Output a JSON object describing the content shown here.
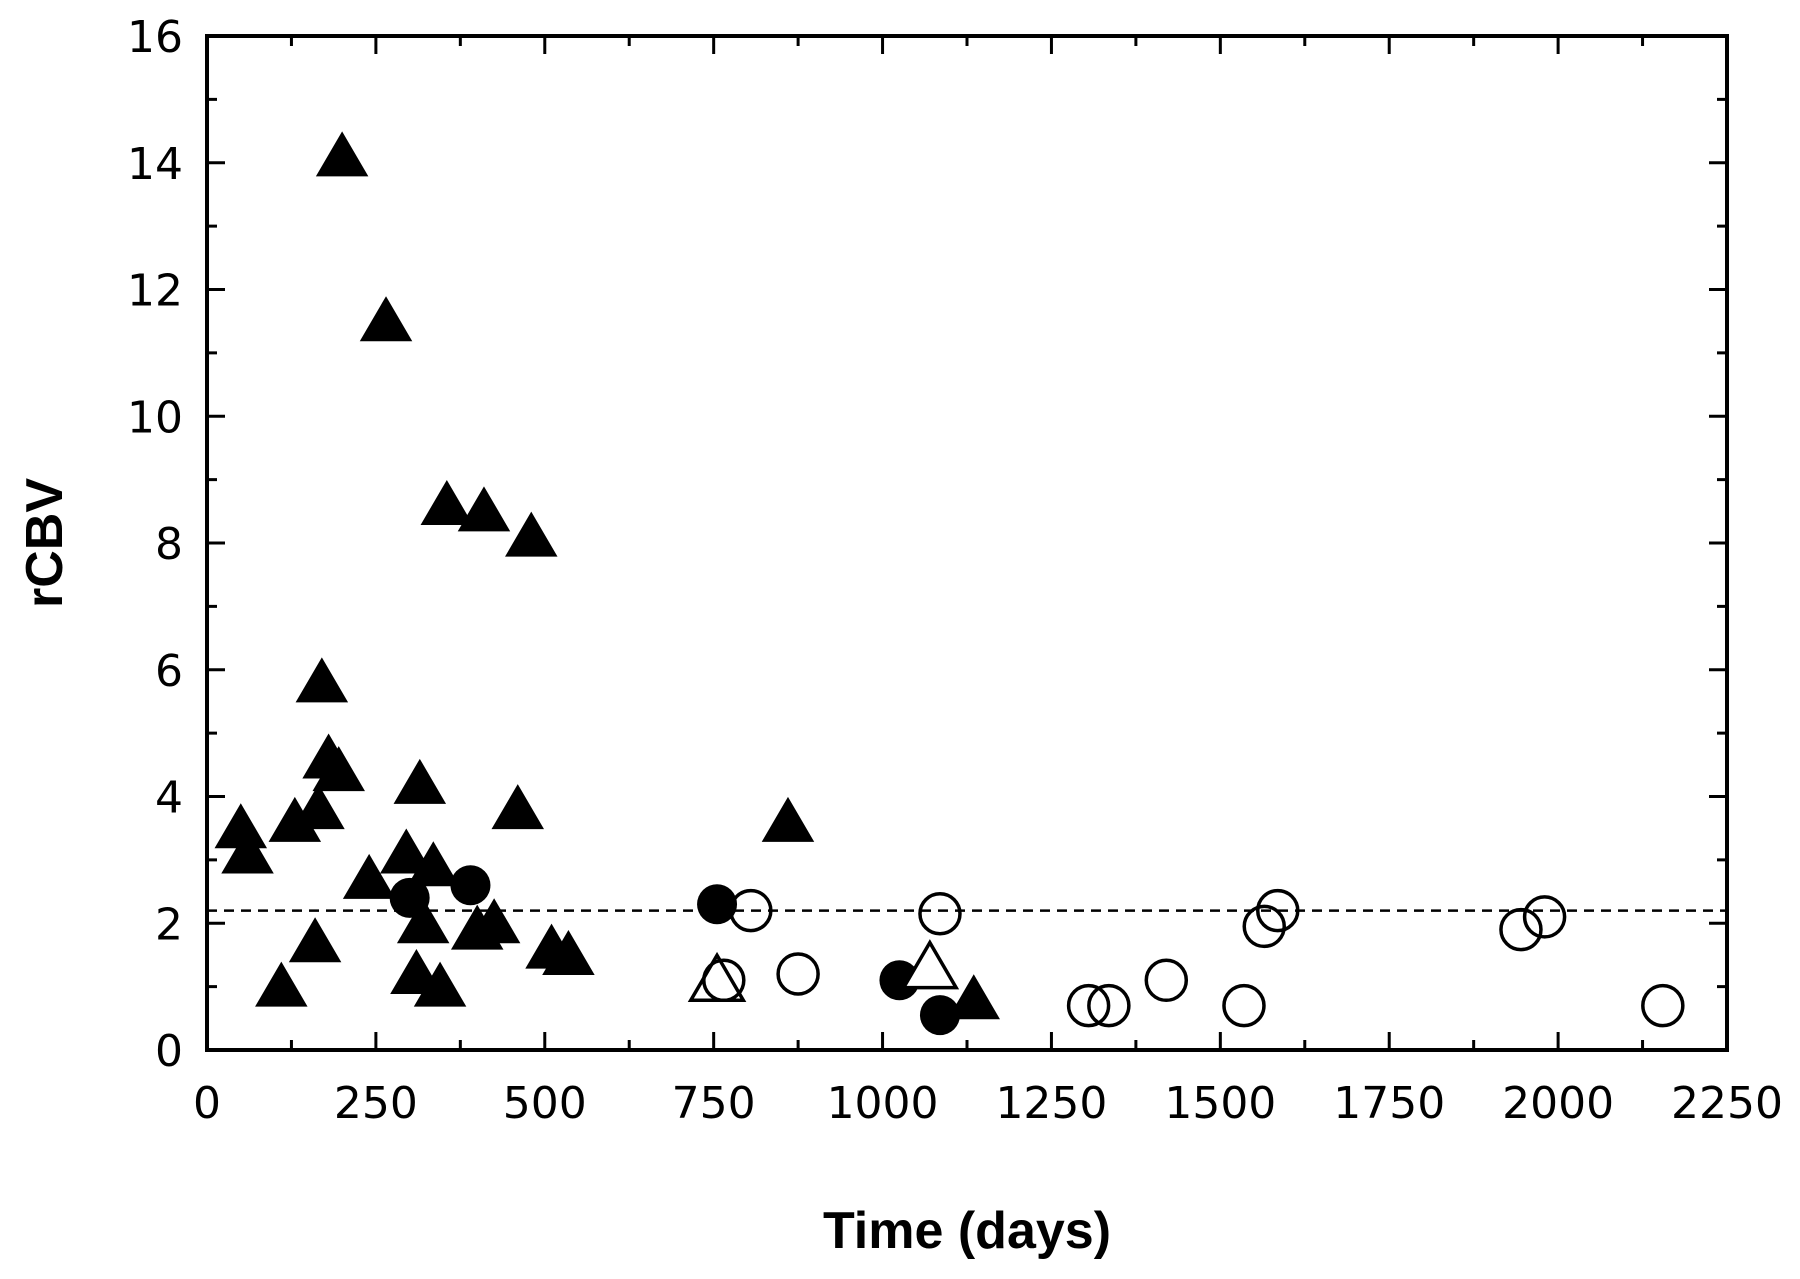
{
  "chart_data": {
    "type": "scatter",
    "title": "",
    "xlabel": "Time (days)",
    "ylabel": "rCBV",
    "xlim": [
      0,
      2250
    ],
    "ylim": [
      0,
      16
    ],
    "x_ticks": [
      0,
      250,
      500,
      750,
      1000,
      1250,
      1500,
      1750,
      2000,
      2250
    ],
    "y_ticks": [
      0,
      2,
      4,
      6,
      8,
      10,
      12,
      14,
      16
    ],
    "x_minor_step": 125,
    "y_minor_step": 1,
    "grid": false,
    "reference_line": {
      "y": 2.2,
      "style": "dashed"
    },
    "series": [
      {
        "marker": "filled-triangle",
        "color": "#000000",
        "points": [
          [
            50,
            3.5
          ],
          [
            60,
            3.1
          ],
          [
            110,
            1.0
          ],
          [
            130,
            3.6
          ],
          [
            165,
            3.8
          ],
          [
            160,
            1.7
          ],
          [
            170,
            5.8
          ],
          [
            180,
            4.6
          ],
          [
            195,
            4.4
          ],
          [
            200,
            14.1
          ],
          [
            240,
            2.7
          ],
          [
            265,
            11.5
          ],
          [
            295,
            3.1
          ],
          [
            315,
            4.2
          ],
          [
            310,
            1.2
          ],
          [
            320,
            2.0
          ],
          [
            335,
            2.9
          ],
          [
            345,
            1.0
          ],
          [
            355,
            8.6
          ],
          [
            400,
            1.9
          ],
          [
            410,
            8.5
          ],
          [
            425,
            2.0
          ],
          [
            460,
            3.8
          ],
          [
            480,
            8.1
          ],
          [
            510,
            1.6
          ],
          [
            535,
            1.5
          ],
          [
            860,
            3.6
          ],
          [
            1135,
            0.8
          ]
        ]
      },
      {
        "marker": "filled-circle",
        "color": "#000000",
        "points": [
          [
            300,
            2.4
          ],
          [
            390,
            2.6
          ],
          [
            755,
            2.3
          ],
          [
            1025,
            1.1
          ],
          [
            1085,
            0.55
          ]
        ]
      },
      {
        "marker": "open-triangle",
        "color": "#000000",
        "points": [
          [
            755,
            1.1
          ],
          [
            1070,
            1.3
          ]
        ]
      },
      {
        "marker": "open-circle",
        "color": "#000000",
        "points": [
          [
            765,
            1.1
          ],
          [
            805,
            2.2
          ],
          [
            875,
            1.2
          ],
          [
            1085,
            2.15
          ],
          [
            1305,
            0.7
          ],
          [
            1335,
            0.7
          ],
          [
            1420,
            1.1
          ],
          [
            1535,
            0.7
          ],
          [
            1565,
            1.95
          ],
          [
            1585,
            2.2
          ],
          [
            1945,
            1.9
          ],
          [
            1980,
            2.1
          ],
          [
            2155,
            0.7
          ]
        ]
      }
    ]
  }
}
